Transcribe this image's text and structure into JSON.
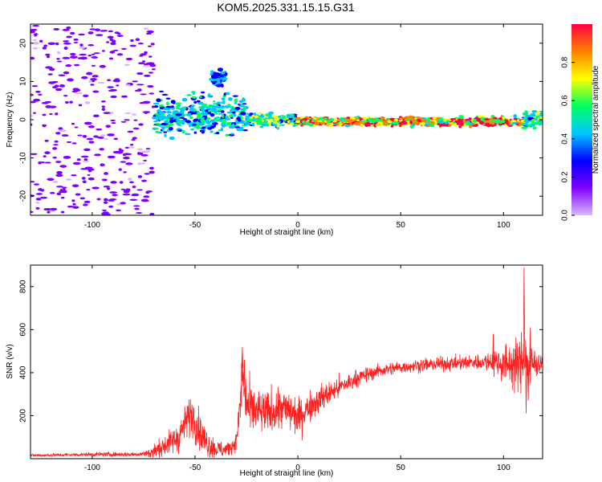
{
  "figure_title": "KOM5.2025.331.15.15.G31",
  "chart_data": [
    {
      "type": "heatmap",
      "title": "KOM5.2025.331.15.15.G31",
      "xlabel": "Height of straight line (km)",
      "ylabel": "Frequency (Hz)",
      "xlim": [
        -130,
        119
      ],
      "ylim": [
        -25,
        25
      ],
      "x_ticks": [
        -100,
        -50,
        0,
        50,
        100
      ],
      "y_ticks": [
        -20,
        -10,
        0,
        10,
        20
      ],
      "colorbar": {
        "label": "Normalized spectral amplitude",
        "range": [
          0.0,
          1.0
        ],
        "ticks": [
          0.0,
          0.2,
          0.4,
          0.6,
          0.8
        ],
        "colormap": [
          "#d8b8ff",
          "#8000ff",
          "#0000ff",
          "#00c8ff",
          "#00ff60",
          "#ffff00",
          "#ff8000",
          "#ff0040"
        ]
      },
      "regions": [
        {
          "x_range": [
            -130,
            -70
          ],
          "freq_center_hz": 0,
          "freq_spread_hz": 25,
          "amplitude": 0.15,
          "description": "noise"
        },
        {
          "x_range": [
            -70,
            -25
          ],
          "freq_center_hz": 1,
          "freq_spread_hz": 5,
          "amplitude": 0.5
        },
        {
          "x_range": [
            -42,
            -35
          ],
          "freq_center_hz": 11,
          "freq_spread_hz": 2,
          "amplitude": 0.4
        },
        {
          "x_range": [
            -25,
            0
          ],
          "freq_center_hz": 0,
          "freq_spread_hz": 1.5,
          "amplitude": 0.6
        },
        {
          "x_range": [
            0,
            110
          ],
          "freq_center_hz": -0.5,
          "freq_spread_hz": 1,
          "amplitude": 0.95
        },
        {
          "x_range": [
            110,
            119
          ],
          "freq_center_hz": 0,
          "freq_spread_hz": 2,
          "amplitude": 0.6
        }
      ]
    },
    {
      "type": "line",
      "xlabel": "Height of straight line (km)",
      "ylabel": "SNR (v/v)",
      "xlim": [
        -130,
        119
      ],
      "ylim": [
        0,
        900
      ],
      "x_ticks": [
        -100,
        -50,
        0,
        50,
        100
      ],
      "y_ticks": [
        200,
        400,
        600,
        800
      ],
      "line_color": "#ff2020",
      "trend": {
        "x": [
          -130,
          -100,
          -80,
          -72,
          -65,
          -58,
          -55,
          -52,
          -50,
          -47,
          -44,
          -40,
          -35,
          -32,
          -30,
          -28,
          -27,
          -26,
          -24,
          -20,
          -15,
          -10,
          -5,
          0,
          5,
          10,
          20,
          30,
          40,
          50,
          60,
          70,
          80,
          90,
          95,
          100,
          104,
          108,
          110,
          112,
          114,
          119
        ],
        "y": [
          15,
          20,
          20,
          25,
          60,
          100,
          160,
          210,
          180,
          110,
          70,
          45,
          40,
          60,
          80,
          250,
          420,
          300,
          230,
          220,
          210,
          230,
          230,
          190,
          240,
          275,
          330,
          380,
          410,
          425,
          435,
          440,
          445,
          450,
          455,
          440,
          440,
          430,
          500,
          420,
          440,
          450
        ]
      },
      "noise_amplitude": {
        "x": [
          -130,
          -75,
          -70,
          -60,
          -50,
          -40,
          -30,
          -27,
          -20,
          -10,
          0,
          10,
          30,
          50,
          90,
          100,
          108,
          113,
          119
        ],
        "y": [
          5,
          8,
          25,
          45,
          70,
          30,
          25,
          100,
          70,
          70,
          60,
          45,
          25,
          20,
          25,
          60,
          90,
          80,
          20
        ]
      },
      "spikes": [
        {
          "x": -27,
          "y": 520
        },
        {
          "x": -26,
          "y": 460
        },
        {
          "x": 95,
          "y": 580
        },
        {
          "x": 110,
          "y": 890
        },
        {
          "x": 111,
          "y": 210
        },
        {
          "x": 113,
          "y": 610
        },
        {
          "x": 112,
          "y": 270
        }
      ]
    }
  ]
}
